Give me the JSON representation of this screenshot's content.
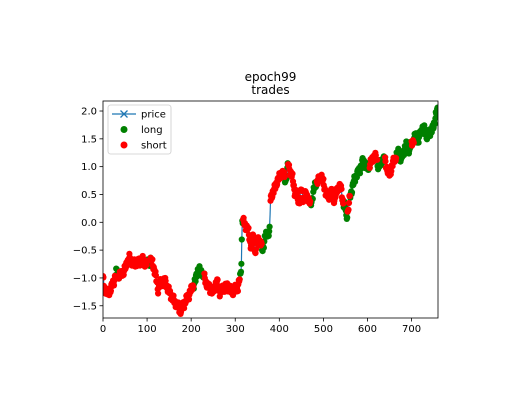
{
  "title_lines": [
    "epoch99",
    "trades"
  ],
  "chart_data": {
    "type": "scatter",
    "title": "epoch99\ntrades",
    "xlabel": "",
    "ylabel": "",
    "xlim": [
      0,
      760
    ],
    "ylim": [
      -1.72,
      2.18
    ],
    "xticks": [
      0,
      100,
      200,
      300,
      400,
      500,
      600,
      700
    ],
    "yticks": [
      -1.5,
      -1.0,
      -0.5,
      0.0,
      0.5,
      1.0,
      1.5,
      2.0
    ],
    "ytick_labels": [
      "−1.5",
      "−1.0",
      "−0.5",
      "0.0",
      "0.5",
      "1.0",
      "1.5",
      "2.0"
    ],
    "grid": false,
    "legend": {
      "placement": "upper-left",
      "entries": [
        {
          "label": "price",
          "marker": "x",
          "color": "#1f77b4"
        },
        {
          "label": "long",
          "marker": "o",
          "color": "#008000"
        },
        {
          "label": "short",
          "marker": "o",
          "color": "#ff0000"
        }
      ]
    },
    "price_keypoints": [
      [
        0,
        -1.0
      ],
      [
        2,
        -1.15
      ],
      [
        10,
        -1.28
      ],
      [
        18,
        -1.2
      ],
      [
        25,
        -1.05
      ],
      [
        30,
        -0.9
      ],
      [
        40,
        -0.95
      ],
      [
        50,
        -0.85
      ],
      [
        55,
        -0.7
      ],
      [
        60,
        -0.65
      ],
      [
        70,
        -0.75
      ],
      [
        80,
        -0.72
      ],
      [
        90,
        -0.68
      ],
      [
        100,
        -0.75
      ],
      [
        110,
        -0.68
      ],
      [
        115,
        -0.8
      ],
      [
        120,
        -1.0
      ],
      [
        125,
        -1.2
      ],
      [
        130,
        -1.1
      ],
      [
        140,
        -1.05
      ],
      [
        150,
        -1.25
      ],
      [
        160,
        -1.4
      ],
      [
        170,
        -1.5
      ],
      [
        175,
        -1.6
      ],
      [
        185,
        -1.45
      ],
      [
        195,
        -1.3
      ],
      [
        210,
        -1.05
      ],
      [
        215,
        -0.85
      ],
      [
        225,
        -0.9
      ],
      [
        232,
        -1.05
      ],
      [
        242,
        -1.2
      ],
      [
        250,
        -1.25
      ],
      [
        258,
        -1.05
      ],
      [
        265,
        -1.25
      ],
      [
        272,
        -1.2
      ],
      [
        282,
        -1.15
      ],
      [
        292,
        -1.25
      ],
      [
        300,
        -1.2
      ],
      [
        305,
        -1.2
      ],
      [
        308,
        -1.1
      ],
      [
        312,
        -0.95
      ],
      [
        314,
        -0.7
      ],
      [
        316,
        0.05
      ],
      [
        322,
        -0.05
      ],
      [
        328,
        -0.1
      ],
      [
        335,
        -0.4
      ],
      [
        340,
        -0.25
      ],
      [
        345,
        -0.55
      ],
      [
        350,
        -0.3
      ],
      [
        356,
        -0.35
      ],
      [
        362,
        -0.5
      ],
      [
        368,
        -0.25
      ],
      [
        374,
        -0.2
      ],
      [
        378,
        -0.15
      ],
      [
        380,
        0.4
      ],
      [
        385,
        0.55
      ],
      [
        390,
        0.6
      ],
      [
        395,
        0.75
      ],
      [
        400,
        0.8
      ],
      [
        405,
        0.9
      ],
      [
        410,
        0.85
      ],
      [
        415,
        0.75
      ],
      [
        420,
        1.05
      ],
      [
        425,
        0.9
      ],
      [
        430,
        0.8
      ],
      [
        435,
        0.55
      ],
      [
        440,
        0.5
      ],
      [
        445,
        0.35
      ],
      [
        450,
        0.6
      ],
      [
        455,
        0.4
      ],
      [
        460,
        0.5
      ],
      [
        465,
        0.45
      ],
      [
        470,
        0.3
      ],
      [
        475,
        0.45
      ],
      [
        482,
        0.7
      ],
      [
        490,
        0.75
      ],
      [
        495,
        0.85
      ],
      [
        500,
        0.7
      ],
      [
        505,
        0.55
      ],
      [
        510,
        0.45
      ],
      [
        515,
        0.5
      ],
      [
        520,
        0.55
      ],
      [
        525,
        0.4
      ],
      [
        530,
        0.55
      ],
      [
        535,
        0.65
      ],
      [
        540,
        0.6
      ],
      [
        545,
        0.35
      ],
      [
        550,
        0.25
      ],
      [
        552,
        0.1
      ],
      [
        556,
        0.2
      ],
      [
        560,
        0.45
      ],
      [
        565,
        0.6
      ],
      [
        570,
        0.75
      ],
      [
        575,
        0.85
      ],
      [
        580,
        0.9
      ],
      [
        585,
        1.0
      ],
      [
        590,
        1.1
      ],
      [
        595,
        1.05
      ],
      [
        600,
        0.95
      ],
      [
        605,
        1.05
      ],
      [
        610,
        1.1
      ],
      [
        615,
        1.2
      ],
      [
        620,
        1.15
      ],
      [
        625,
        1.0
      ],
      [
        630,
        1.05
      ],
      [
        635,
        1.15
      ],
      [
        640,
        1.1
      ],
      [
        645,
        0.95
      ],
      [
        650,
        0.85
      ],
      [
        655,
        1.0
      ],
      [
        660,
        1.1
      ],
      [
        665,
        1.2
      ],
      [
        670,
        1.25
      ],
      [
        675,
        1.15
      ],
      [
        680,
        1.2
      ],
      [
        685,
        1.35
      ],
      [
        690,
        1.4
      ],
      [
        695,
        1.3
      ],
      [
        700,
        1.4
      ],
      [
        705,
        1.5
      ],
      [
        710,
        1.55
      ],
      [
        715,
        1.45
      ],
      [
        720,
        1.6
      ],
      [
        725,
        1.7
      ],
      [
        730,
        1.65
      ],
      [
        735,
        1.55
      ],
      [
        740,
        1.6
      ],
      [
        745,
        1.65
      ],
      [
        750,
        1.7
      ],
      [
        755,
        1.95
      ],
      [
        760,
        2.0
      ]
    ],
    "signal_series": [
      {
        "name": "long",
        "color": "#008000",
        "ranges": [
          [
            28,
            36
          ],
          [
            100,
            108
          ],
          [
            205,
            230
          ],
          [
            310,
            318
          ],
          [
            360,
            378
          ],
          [
            412,
            420
          ],
          [
            470,
            485
          ],
          [
            545,
            555
          ],
          [
            560,
            605
          ],
          [
            622,
            640
          ],
          [
            665,
            700
          ],
          [
            705,
            760
          ]
        ]
      },
      {
        "name": "short",
        "color": "#ff0000",
        "ranges": [
          [
            0,
            28
          ],
          [
            36,
            100
          ],
          [
            108,
            205
          ],
          [
            230,
            310
          ],
          [
            318,
            360
          ],
          [
            380,
            412
          ],
          [
            420,
            470
          ],
          [
            485,
            545
          ],
          [
            555,
            560
          ],
          [
            605,
            622
          ],
          [
            640,
            665
          ],
          [
            700,
            705
          ]
        ]
      }
    ]
  }
}
